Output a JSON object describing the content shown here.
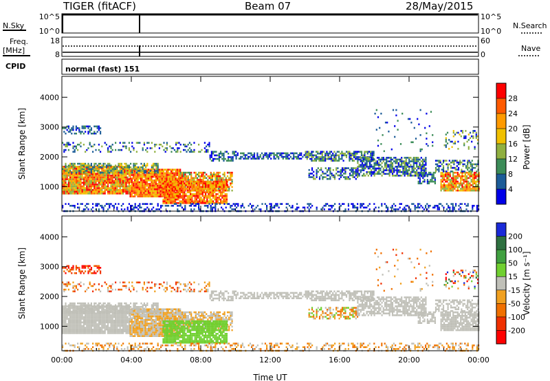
{
  "header": {
    "station": "TIGER (fitACF)",
    "beam": "Beam 07",
    "date": "28/May/2015"
  },
  "status_panels": {
    "nsky_label": "N.Sky",
    "nsky_ticks": [
      "10^5",
      "10^0"
    ],
    "nsearch_label": "N.Search",
    "nsearch_ticks": [
      "10^5",
      "10^0"
    ],
    "freq_label_1": "Freq.",
    "freq_label_2": "[MHz]",
    "freq_ticks": [
      "18",
      "8"
    ],
    "nave_label": "Nave",
    "nave_ticks": [
      "60",
      "0"
    ],
    "cpid_label": "CPID",
    "cpid_value": "normal (fast) 151"
  },
  "chart_data": [
    {
      "type": "heatmap",
      "title": "",
      "xlabel": "",
      "ylabel": "Slant Range [km]",
      "x_ticks": [
        "00:00",
        "04:00",
        "08:00",
        "12:00",
        "16:00",
        "20:00",
        "00:00"
      ],
      "xlim_hours": [
        0,
        24
      ],
      "ylim_km": [
        180,
        4700
      ],
      "y_ticks": [
        "4000",
        "3000",
        "2000",
        "1000"
      ],
      "y_tick_values": [
        4000,
        3000,
        2000,
        1000
      ],
      "colorbar": {
        "label": "Power [dB]",
        "ticks": [
          "28",
          "24",
          "20",
          "16",
          "12",
          "8",
          "4"
        ],
        "colors": [
          "#ff0000",
          "#ff5a00",
          "#ff9a00",
          "#f0c000",
          "#90b040",
          "#3c8c58",
          "#1c5c98",
          "#0000e8"
        ]
      }
    },
    {
      "type": "heatmap",
      "title": "",
      "xlabel": "Time UT",
      "ylabel": "Slant Range [km]",
      "x_ticks": [
        "00:00",
        "04:00",
        "08:00",
        "12:00",
        "16:00",
        "20:00",
        "00:00"
      ],
      "xlim_hours": [
        0,
        24
      ],
      "ylim_km": [
        180,
        4700
      ],
      "y_ticks": [
        "4000",
        "3000",
        "2000",
        "1000"
      ],
      "y_tick_values": [
        4000,
        3000,
        2000,
        1000
      ],
      "colorbar": {
        "label": "Velocity [m s⁻¹]",
        "ticks": [
          "200",
          "100",
          "50",
          "15",
          "-15",
          "-50",
          "-100",
          "-200"
        ],
        "colors": [
          "#1a2ad8",
          "#2e7040",
          "#40a040",
          "#70d030",
          "#c0c0b8",
          "#f0a020",
          "#f07000",
          "#f03000",
          "#ff0000"
        ]
      }
    }
  ]
}
